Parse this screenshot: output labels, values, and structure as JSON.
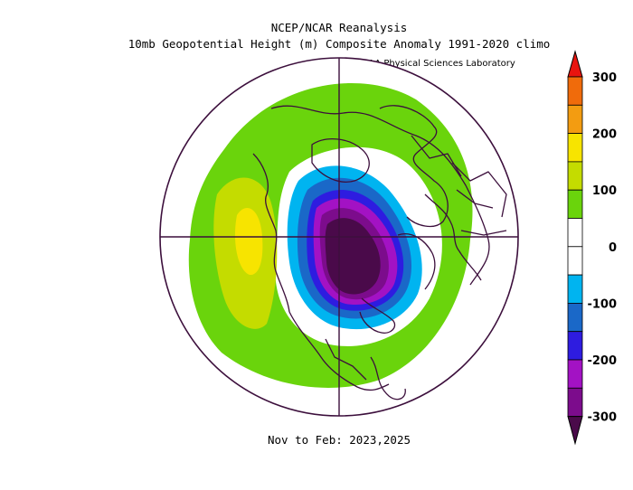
{
  "title": {
    "line1": "NCEP/NCAR Reanalysis",
    "line2": "10mb Geopotential Height (m) Composite Anomaly 1991-2020 climo"
  },
  "credit": "NOAA Physical Sciences Laboratory",
  "period": "Nov to Feb: 2023,2025",
  "map": {
    "projection": "north-polar-stereographic",
    "field": "10mb geopotential height anomaly",
    "units": "m",
    "features": [
      {
        "name": "negative-anomaly-center",
        "location": "Arctic Ocean / Greenland side of pole",
        "min_class": "-300"
      },
      {
        "name": "positive-anomaly-ring",
        "location": "mid-latitudes surrounding the polar vortex",
        "class": "50 to 100"
      },
      {
        "name": "positive-anomaly-max",
        "location": "North Pacific",
        "class": "150 to 200"
      }
    ]
  },
  "colorbar": {
    "labels": [
      "300",
      "200",
      "100",
      "0",
      "-100",
      "-200",
      "-300"
    ],
    "colors": [
      "#e8140f",
      "#f06b0b",
      "#f39c11",
      "#f7e400",
      "#c4dc00",
      "#6ad40c",
      "#ffffff",
      "#ffffff",
      "#00b4f0",
      "#1a68c8",
      "#2e1ce0",
      "#a312c4",
      "#7c0c8c",
      "#4a0a4a"
    ]
  }
}
